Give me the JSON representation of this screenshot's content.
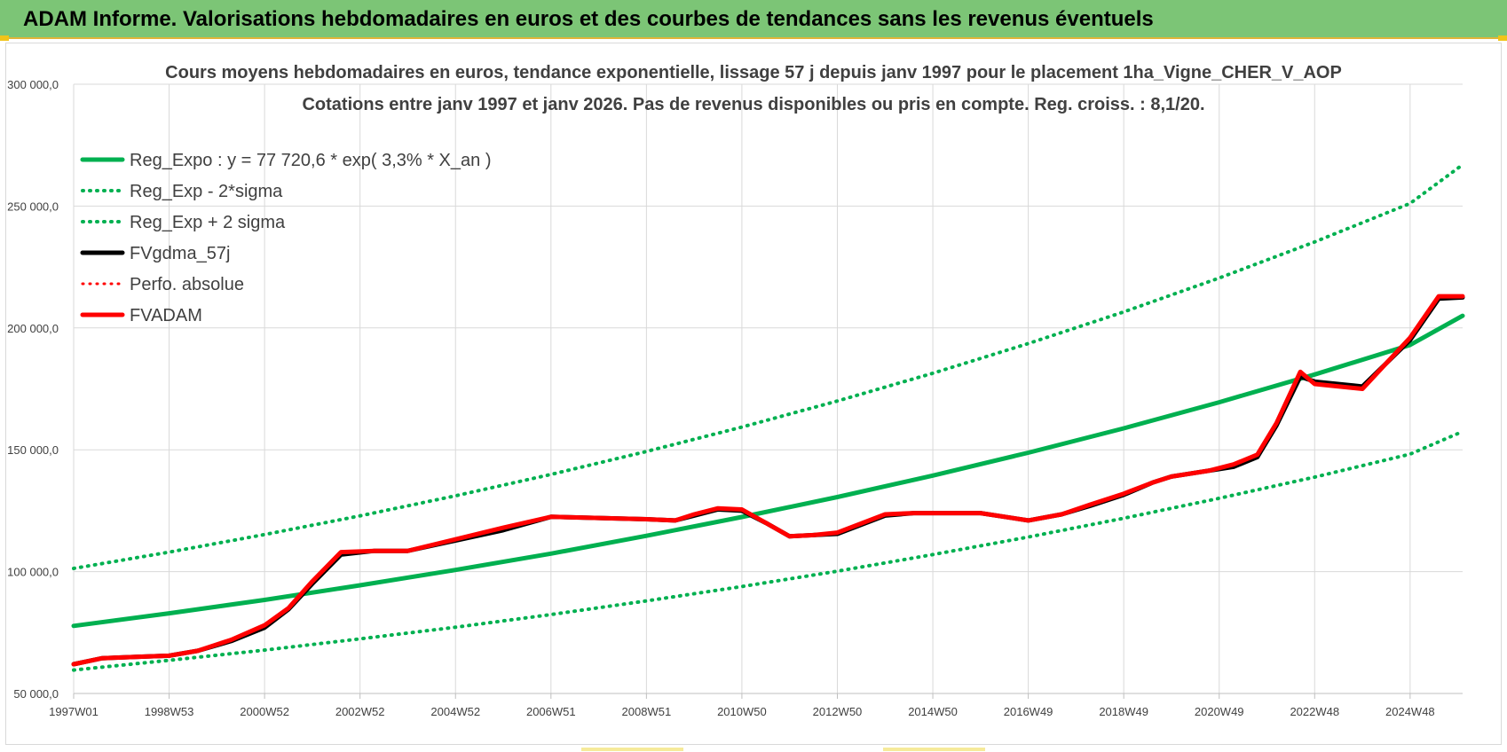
{
  "header": {
    "title": "ADAM Informe. Valorisations hebdomadaires en euros et des courbes de tendances sans les revenus éventuels"
  },
  "chart_data": {
    "type": "line",
    "title_lines": [
      "Cours moyens hebdomadaires en euros, tendance exponentielle, lissage 57 j depuis janv 1997 pour le placement 1ha_Vigne_CHER_V_AOP",
      "Cotations entre janv 1997 et janv 2026. Pas de revenus disponibles ou pris  en compte. Reg. croiss. : 8,1/20."
    ],
    "xlabel": "",
    "ylabel": "",
    "ylim": [
      50000,
      300000
    ],
    "xlim": [
      1997.0,
      2026.1
    ],
    "grid": true,
    "legend_position": "top-left",
    "y_ticks": [
      {
        "value": 50000,
        "label": "50 000,0"
      },
      {
        "value": 100000,
        "label": "100 000,0"
      },
      {
        "value": 150000,
        "label": "150 000,0"
      },
      {
        "value": 200000,
        "label": "200 000,0"
      },
      {
        "value": 250000,
        "label": "250 000,0"
      },
      {
        "value": 300000,
        "label": "300 000,0"
      }
    ],
    "x_ticks": [
      {
        "value": 1997.0,
        "label": "1997W01"
      },
      {
        "value": 1999.0,
        "label": "1998W53"
      },
      {
        "value": 2001.0,
        "label": "2000W52"
      },
      {
        "value": 2003.0,
        "label": "2002W52"
      },
      {
        "value": 2005.0,
        "label": "2004W52"
      },
      {
        "value": 2007.0,
        "label": "2006W51"
      },
      {
        "value": 2009.0,
        "label": "2008W51"
      },
      {
        "value": 2011.0,
        "label": "2010W50"
      },
      {
        "value": 2013.0,
        "label": "2012W50"
      },
      {
        "value": 2015.0,
        "label": "2014W50"
      },
      {
        "value": 2017.0,
        "label": "2016W49"
      },
      {
        "value": 2019.0,
        "label": "2018W49"
      },
      {
        "value": 2021.0,
        "label": "2020W49"
      },
      {
        "value": 2023.0,
        "label": "2022W48"
      },
      {
        "value": 2025.0,
        "label": "2024W48"
      }
    ],
    "series": [
      {
        "name": "Reg_Expo : y = 77 720,6 * exp( 3,3% *  X_an )",
        "color": "#00b050",
        "style": "solid",
        "width": 5,
        "x": [
          1997.0,
          1999.0,
          2001.0,
          2003.0,
          2005.0,
          2007.0,
          2009.0,
          2011.0,
          2013.0,
          2015.0,
          2017.0,
          2019.0,
          2021.0,
          2023.0,
          2025.0,
          2026.1
        ],
        "y": [
          77720,
          82900,
          88400,
          94400,
          100700,
          107400,
          114700,
          122400,
          130600,
          139400,
          148800,
          158800,
          169500,
          180900,
          193000,
          205000
        ]
      },
      {
        "name": "Reg_Exp - 2*sigma",
        "color": "#00b050",
        "style": "dotted",
        "width": 4,
        "x": [
          1997.0,
          1999.0,
          2001.0,
          2003.0,
          2005.0,
          2007.0,
          2009.0,
          2011.0,
          2013.0,
          2015.0,
          2017.0,
          2019.0,
          2021.0,
          2023.0,
          2025.0,
          2026.1
        ],
        "y": [
          59600,
          63600,
          67800,
          72400,
          77200,
          82400,
          88000,
          93900,
          100200,
          107000,
          114200,
          121900,
          130100,
          138800,
          148200,
          157500
        ]
      },
      {
        "name": "Reg_Exp + 2 sigma",
        "color": "#00b050",
        "style": "dotted",
        "width": 4,
        "x": [
          1997.0,
          1999.0,
          2001.0,
          2003.0,
          2005.0,
          2007.0,
          2009.0,
          2011.0,
          2013.0,
          2015.0,
          2017.0,
          2019.0,
          2021.0,
          2023.0,
          2025.0,
          2026.1
        ],
        "y": [
          101300,
          108000,
          115200,
          122900,
          131100,
          139900,
          149300,
          159300,
          170000,
          181400,
          193600,
          206600,
          220500,
          235300,
          251100,
          267000
        ]
      },
      {
        "name": "FVgdma_57j",
        "color": "#000000",
        "style": "solid",
        "width": 5,
        "x": [
          1997.0,
          1997.6,
          1998.3,
          1999.0,
          1999.6,
          2000.3,
          2001.0,
          2001.5,
          2002.0,
          2002.6,
          2003.3,
          2004.0,
          2006.0,
          2007.0,
          2008.0,
          2009.0,
          2009.6,
          2010.0,
          2010.5,
          2011.0,
          2011.5,
          2012.0,
          2012.5,
          2013.0,
          2014.0,
          2014.6,
          2015.0,
          2016.0,
          2017.0,
          2017.7,
          2018.3,
          2019.0,
          2019.6,
          2020.0,
          2020.8,
          2021.3,
          2021.8,
          2022.2,
          2022.7,
          2023.0,
          2024.0,
          2025.0,
          2025.6,
          2026.1
        ],
        "y": [
          62000,
          64500,
          65000,
          65500,
          67500,
          71500,
          77000,
          84500,
          95000,
          107000,
          108500,
          108500,
          117000,
          122500,
          122000,
          121500,
          121000,
          123000,
          125500,
          125000,
          120000,
          114500,
          115000,
          115500,
          123000,
          124000,
          124000,
          124000,
          121000,
          123500,
          127000,
          131500,
          136500,
          139000,
          141500,
          143000,
          147000,
          160000,
          180000,
          178000,
          176000,
          195000,
          212000,
          212500
        ]
      },
      {
        "name": "Perfo. absolue",
        "color": "#ff0000",
        "style": "dotted",
        "width": 3,
        "x": [],
        "y": []
      },
      {
        "name": "FVADAM",
        "color": "#ff0000",
        "style": "solid",
        "width": 5,
        "x": [
          1997.0,
          1997.6,
          1998.3,
          1999.0,
          1999.6,
          2000.3,
          2001.0,
          2001.5,
          2002.0,
          2002.6,
          2003.3,
          2004.0,
          2006.0,
          2007.0,
          2008.0,
          2009.0,
          2009.6,
          2010.0,
          2010.5,
          2011.0,
          2011.5,
          2012.0,
          2012.5,
          2013.0,
          2014.0,
          2014.6,
          2015.0,
          2016.0,
          2017.0,
          2017.7,
          2018.3,
          2019.0,
          2019.6,
          2020.0,
          2020.8,
          2021.3,
          2021.8,
          2022.2,
          2022.7,
          2023.0,
          2024.0,
          2025.0,
          2025.6,
          2026.1
        ],
        "y": [
          62000,
          64500,
          65000,
          65500,
          67500,
          72000,
          78000,
          85000,
          96000,
          108000,
          108500,
          108500,
          118000,
          122500,
          122000,
          121500,
          121000,
          123500,
          126000,
          125500,
          120000,
          114500,
          115000,
          116000,
          123500,
          124000,
          124000,
          124000,
          121000,
          123500,
          127500,
          132000,
          136500,
          139000,
          141500,
          144000,
          148000,
          161000,
          182000,
          177000,
          175000,
          196000,
          213000,
          213000
        ]
      }
    ]
  }
}
